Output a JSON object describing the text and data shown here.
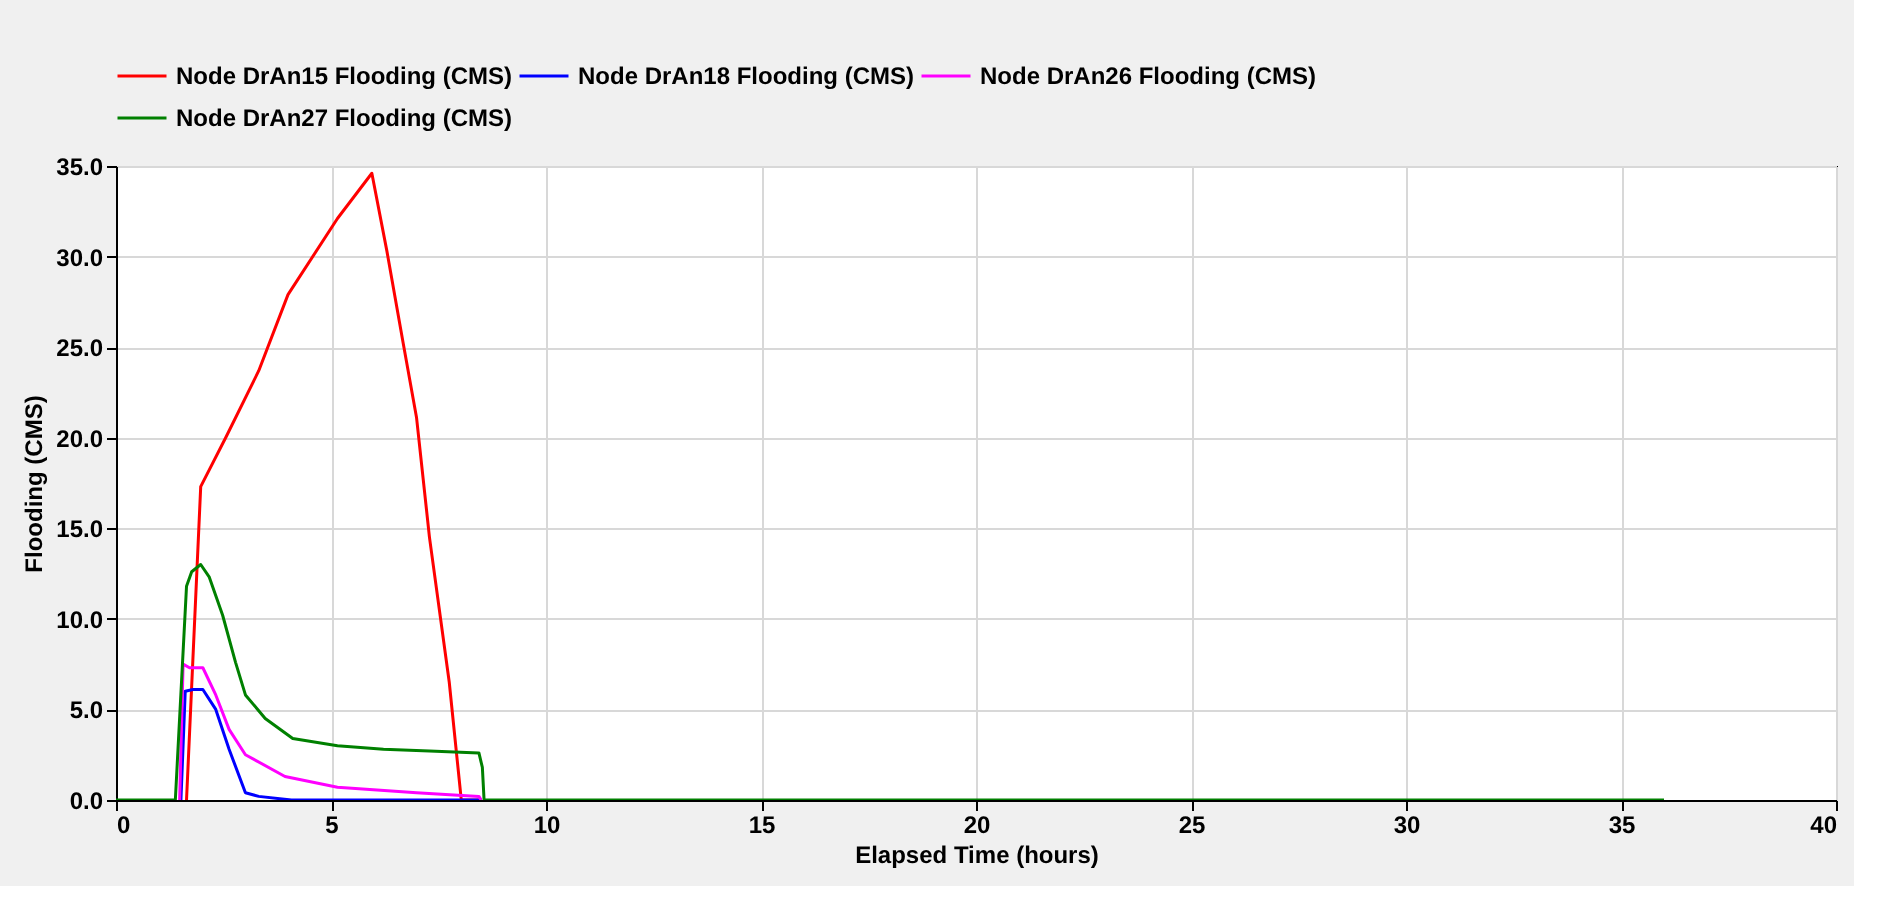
{
  "chart_data": {
    "type": "line",
    "xlabel": "Elapsed Time (hours)",
    "ylabel": "Flooding (CMS)",
    "xlim": [
      0,
      40
    ],
    "xticks": [
      0,
      5,
      10,
      15,
      20,
      25,
      30,
      35,
      40
    ],
    "ylim": [
      0,
      35
    ],
    "yticks": [
      {
        "value": 0,
        "label": "0.0"
      },
      {
        "value": 5,
        "label": "5.0"
      },
      {
        "value": 10,
        "label": "10.0"
      },
      {
        "value": 15,
        "label": "15.0"
      },
      {
        "value": 20,
        "label": "20.0"
      },
      {
        "value": 25,
        "label": "25.0"
      },
      {
        "value": 30,
        "label": "30.0"
      },
      {
        "value": 35,
        "label": "35.0"
      }
    ],
    "grid": true,
    "legend": "top",
    "marker": "none",
    "line_style": "solid",
    "series": [
      {
        "name": "Node DrAn15 Flooding (CMS)",
        "color": "#ff0000",
        "x": [
          1.64,
          1.97,
          2.55,
          3.32,
          4.0,
          5.15,
          5.95,
          6.3,
          6.68,
          6.99,
          7.29,
          7.75,
          8.03,
          8.5
        ],
        "values": [
          0,
          17.3,
          20.0,
          23.7,
          27.9,
          32.1,
          34.6,
          30.3,
          25.2,
          21.1,
          14.5,
          6.5,
          0,
          0
        ]
      },
      {
        "name": "Node DrAn18 Flooding (CMS)",
        "color": "#0000ff",
        "x": [
          1.51,
          1.61,
          1.79,
          2.02,
          2.32,
          2.63,
          3.01,
          3.32,
          4.08,
          8.5
        ],
        "values": [
          0,
          6.0,
          6.1,
          6.1,
          5.0,
          2.8,
          0.4,
          0.2,
          0,
          0
        ]
      },
      {
        "name": "Node DrAn26 Flooding (CMS)",
        "color": "#ff00ff",
        "x": [
          1.48,
          1.56,
          1.71,
          2.02,
          2.32,
          2.63,
          3.01,
          3.93,
          5.15,
          6.99,
          8.44,
          8.49
        ],
        "values": [
          0,
          7.5,
          7.3,
          7.3,
          5.8,
          3.9,
          2.5,
          1.3,
          0.7,
          0.4,
          0.2,
          0
        ]
      },
      {
        "name": "Node DrAn27 Flooding (CMS)",
        "color": "#008000",
        "x": [
          0,
          1.38,
          1.64,
          1.76,
          1.97,
          2.17,
          2.48,
          2.78,
          3.01,
          3.47,
          4.11,
          5.15,
          6.22,
          7.29,
          8.44,
          8.52,
          8.56,
          36
        ],
        "values": [
          0,
          0,
          11.8,
          12.6,
          13.0,
          12.3,
          10.2,
          7.6,
          5.8,
          4.5,
          3.4,
          3.0,
          2.8,
          2.7,
          2.6,
          1.8,
          0,
          0
        ]
      }
    ]
  }
}
